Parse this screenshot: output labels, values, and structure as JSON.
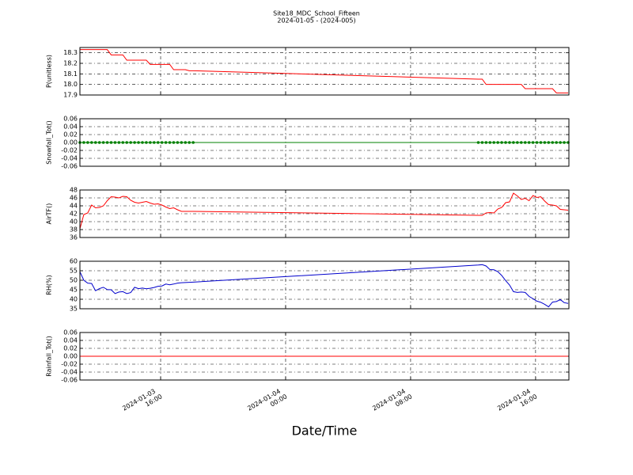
{
  "chart_data": {
    "type": "line",
    "title": "Site18_MDC_School_Fifteen",
    "subtitle": "2024-01-05 - (2024-005)",
    "xlabel": "Date/Time",
    "grid": true,
    "xlim": [
      "2024-01-03 10:50",
      "2024-01-04 18:08"
    ],
    "xticks": [
      {
        "value": "2024-01-03 16:00",
        "label": [
          "2024-01-03",
          "16:00"
        ]
      },
      {
        "value": "2024-01-04 00:00",
        "label": [
          "2024-01-04",
          "00:00"
        ]
      },
      {
        "value": "2024-01-04 08:00",
        "label": [
          "2024-01-04",
          "08:00"
        ]
      },
      {
        "value": "2024-01-04 16:00",
        "label": [
          "2024-01-04",
          "16:00"
        ]
      }
    ],
    "x": [
      "2024-01-03 10:50",
      "2024-01-03 11:05",
      "2024-01-03 11:20",
      "2024-01-03 11:35",
      "2024-01-03 11:50",
      "2024-01-03 12:05",
      "2024-01-03 12:20",
      "2024-01-03 12:35",
      "2024-01-03 12:50",
      "2024-01-03 13:05",
      "2024-01-03 13:20",
      "2024-01-03 13:35",
      "2024-01-03 13:50",
      "2024-01-03 14:05",
      "2024-01-03 14:20",
      "2024-01-03 14:35",
      "2024-01-03 14:50",
      "2024-01-03 15:05",
      "2024-01-03 15:20",
      "2024-01-03 15:35",
      "2024-01-03 15:50",
      "2024-01-03 16:05",
      "2024-01-03 16:20",
      "2024-01-03 16:35",
      "2024-01-03 16:50",
      "2024-01-03 17:05",
      "2024-01-03 17:20",
      "2024-01-03 17:35",
      "2024-01-03 17:50",
      "2024-01-03 18:05",
      "2024-01-04 12:20",
      "2024-01-04 12:35",
      "2024-01-04 12:50",
      "2024-01-04 13:05",
      "2024-01-04 13:20",
      "2024-01-04 13:35",
      "2024-01-04 13:50",
      "2024-01-04 14:05",
      "2024-01-04 14:20",
      "2024-01-04 14:35",
      "2024-01-04 14:50",
      "2024-01-04 15:05",
      "2024-01-04 15:20",
      "2024-01-04 15:35",
      "2024-01-04 15:50",
      "2024-01-04 16:05",
      "2024-01-04 16:20",
      "2024-01-04 16:35",
      "2024-01-04 16:50",
      "2024-01-04 17:05",
      "2024-01-04 17:20",
      "2024-01-04 17:35",
      "2024-01-04 17:50",
      "2024-01-04 18:05"
    ],
    "panels": [
      {
        "ylabel": "P(unitless)",
        "color": "#ff0000",
        "markers": false,
        "ylim": [
          17.9,
          18.35
        ],
        "yticks": [
          17.9,
          {
            "value": 18.0,
            "label": "18.0"
          },
          18.1,
          18.2,
          18.3
        ],
        "values": [
          18.33,
          18.33,
          18.33,
          18.33,
          18.33,
          18.33,
          18.33,
          18.33,
          18.28,
          18.28,
          18.28,
          18.28,
          18.23,
          18.23,
          18.23,
          18.23,
          18.23,
          18.23,
          18.19,
          18.19,
          18.19,
          18.19,
          18.19,
          18.19,
          18.14,
          18.14,
          18.14,
          18.14,
          18.13,
          18.13,
          18.05,
          18.05,
          18.0,
          18.0,
          18.0,
          18.0,
          18.0,
          18.0,
          18.0,
          18.0,
          18.0,
          18.0,
          17.96,
          17.96,
          17.96,
          17.96,
          17.96,
          17.96,
          17.96,
          17.96,
          17.92,
          17.92,
          17.92,
          17.92
        ]
      },
      {
        "ylabel": "Snowfall_Tot()",
        "color": "#008000",
        "markers": true,
        "ylim": [
          -0.06,
          0.06
        ],
        "yticks": [
          -0.06,
          -0.04,
          -0.02,
          {
            "value": 0,
            "label": "0.00"
          },
          0.02,
          0.04,
          0.06
        ],
        "values": [
          0,
          0,
          0,
          0,
          0,
          0,
          0,
          0,
          0,
          0,
          0,
          0,
          0,
          0,
          0,
          0,
          0,
          0,
          0,
          0,
          0,
          0,
          0,
          0,
          0,
          0,
          0,
          0,
          0,
          0,
          0,
          0,
          0,
          0,
          0,
          0,
          0,
          0,
          0,
          0,
          0,
          0,
          0,
          0,
          0,
          0,
          0,
          0,
          0,
          0,
          0,
          0,
          0,
          0
        ]
      },
      {
        "ylabel": "AirTF()",
        "color": "#ff0000",
        "markers": false,
        "ylim": [
          36,
          48
        ],
        "yticks": [
          36,
          38,
          40,
          42,
          44,
          46,
          48
        ],
        "values": [
          38.2,
          41.8,
          42.2,
          44.2,
          43.5,
          43.6,
          44.0,
          45.3,
          46.3,
          46.2,
          46.0,
          46.4,
          46.3,
          45.4,
          44.9,
          44.7,
          44.9,
          45.1,
          44.7,
          44.4,
          44.5,
          44.2,
          43.7,
          43.3,
          43.5,
          43.0,
          42.6,
          42.6,
          42.6,
          42.6,
          41.6,
          41.6,
          42.2,
          42.3,
          42.2,
          43.2,
          43.6,
          44.8,
          45.0,
          47.2,
          46.5,
          45.6,
          45.9,
          45.3,
          46.6,
          46.1,
          46.3,
          45.2,
          44.3,
          44.2,
          44.0,
          43.1,
          43.0,
          42.9
        ]
      },
      {
        "ylabel": "RH(%)",
        "color": "#0000cc",
        "markers": false,
        "ylim": [
          35,
          60
        ],
        "yticks": [
          35,
          40,
          45,
          50,
          55,
          60
        ],
        "values": [
          54.5,
          50,
          48.5,
          48.3,
          44.5,
          45.6,
          46.3,
          45.1,
          45.0,
          43.0,
          43.8,
          44.0,
          43.0,
          43.5,
          46.3,
          45.6,
          45.9,
          45.5,
          45.8,
          46.2,
          46.8,
          47.0,
          48.0,
          47.6,
          48.0,
          48.5,
          48.7,
          48.8,
          48.9,
          49.0,
          58.0,
          58.2,
          57.5,
          55.6,
          55.5,
          54.5,
          52.5,
          49.8,
          47.5,
          44.0,
          43.6,
          43.8,
          43.6,
          41.5,
          40.3,
          39.0,
          38.4,
          37.3,
          36.0,
          38.5,
          38.8,
          39.8,
          38.2,
          37.8
        ]
      },
      {
        "ylabel": "Rainfall_Tot()",
        "color": "#ff0000",
        "markers": false,
        "ylim": [
          -0.06,
          0.06
        ],
        "yticks": [
          -0.06,
          -0.04,
          -0.02,
          {
            "value": 0,
            "label": "0.00"
          },
          0.02,
          0.04,
          0.06
        ],
        "values": [
          0,
          0,
          0,
          0,
          0,
          0,
          0,
          0,
          0,
          0,
          0,
          0,
          0,
          0,
          0,
          0,
          0,
          0,
          0,
          0,
          0,
          0,
          0,
          0,
          0,
          0,
          0,
          0,
          0,
          0,
          0,
          0,
          0,
          0,
          0,
          0,
          0,
          0,
          0,
          0,
          0,
          0,
          0,
          0,
          0,
          0,
          0,
          0,
          0,
          0,
          0,
          0,
          0,
          0
        ]
      }
    ]
  }
}
